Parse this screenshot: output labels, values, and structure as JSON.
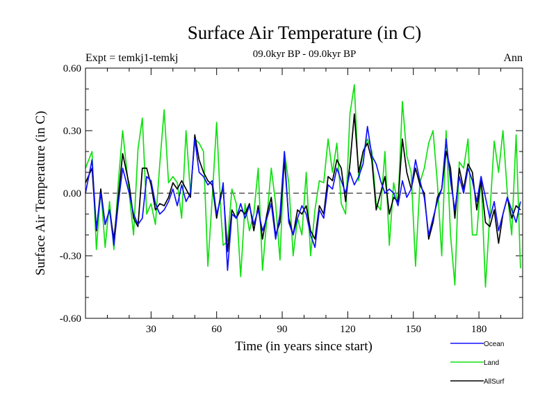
{
  "chart_data": {
    "type": "line",
    "title": "Surface Air Temperature (in C)",
    "subtitle": "09.0kyr BP - 09.0kyr BP",
    "left_label": "Expt = temkj1-temkj",
    "right_label": "Ann",
    "xlabel": "Time (in years since start)",
    "ylabel": "Surface Air Temperature (in C)",
    "xlim": [
      0,
      200
    ],
    "ylim": [
      -0.6,
      0.6
    ],
    "x_ticks": [
      30,
      60,
      90,
      120,
      150,
      180
    ],
    "x_tick_labels": [
      "30",
      "60",
      "90",
      "120",
      "150",
      "180"
    ],
    "y_ticks": [
      -0.6,
      -0.3,
      0.0,
      0.3,
      0.6
    ],
    "y_tick_labels": [
      "-0.60",
      "-0.30",
      "0.00",
      "0.30",
      "0.60"
    ],
    "zero_line": "dashed",
    "legend_position": "bottom-right",
    "x": [
      0,
      3,
      5,
      7,
      9,
      11,
      13,
      15,
      17,
      20,
      22,
      24,
      26,
      28,
      30,
      32,
      34,
      36,
      38,
      40,
      42,
      44,
      46,
      48,
      50,
      52,
      54,
      56,
      58,
      60,
      62,
      63,
      65,
      67,
      69,
      71,
      73,
      75,
      77,
      79,
      81,
      83,
      85,
      87,
      89,
      91,
      93,
      95,
      97,
      99,
      101,
      103,
      105,
      107,
      109,
      111,
      113,
      115,
      117,
      119,
      121,
      123,
      125,
      127,
      129,
      131,
      133,
      135,
      137,
      139,
      141,
      143,
      145,
      147,
      149,
      151,
      153,
      155,
      157,
      159,
      161,
      163,
      165,
      167,
      169,
      171,
      173,
      175,
      177,
      179,
      181,
      183,
      185,
      187,
      189,
      191,
      193,
      195,
      197,
      199
    ],
    "series": [
      {
        "name": "Ocean",
        "color": "#1010ff",
        "values": [
          0.0,
          0.16,
          -0.17,
          0.0,
          -0.15,
          -0.08,
          -0.25,
          -0.05,
          0.12,
          0.0,
          -0.1,
          -0.15,
          -0.12,
          0.08,
          0.06,
          -0.05,
          -0.1,
          -0.08,
          -0.04,
          0.02,
          -0.06,
          0.04,
          -0.04,
          0.0,
          0.26,
          0.1,
          0.08,
          0.04,
          0.06,
          -0.1,
          -0.02,
          0.05,
          -0.37,
          -0.1,
          -0.12,
          -0.05,
          -0.12,
          -0.06,
          -0.15,
          -0.08,
          -0.18,
          -0.12,
          -0.05,
          -0.22,
          -0.1,
          0.2,
          -0.14,
          -0.2,
          -0.12,
          -0.06,
          -0.1,
          -0.2,
          -0.26,
          -0.08,
          -0.12,
          0.04,
          0.02,
          0.12,
          0.06,
          0.0,
          0.1,
          0.04,
          0.08,
          0.14,
          0.32,
          0.18,
          0.14,
          0.06,
          0.0,
          0.02,
          0.0,
          -0.06,
          0.06,
          -0.02,
          0.02,
          0.16,
          0.06,
          -0.02,
          -0.2,
          -0.12,
          -0.04,
          0.02,
          0.26,
          0.06,
          -0.08,
          0.08,
          0.0,
          0.12,
          0.06,
          -0.04,
          0.08,
          -0.02,
          -0.12,
          -0.04,
          -0.18,
          -0.1,
          -0.02,
          -0.08,
          -0.14,
          -0.04
        ]
      },
      {
        "name": "Land",
        "color": "#10e010",
        "values": [
          0.12,
          0.2,
          -0.27,
          0.02,
          -0.26,
          -0.04,
          -0.27,
          0.05,
          0.3,
          0.0,
          -0.2,
          0.21,
          0.36,
          -0.1,
          -0.05,
          -0.15,
          0.14,
          0.4,
          0.05,
          0.08,
          0.05,
          -0.12,
          0.3,
          0.0,
          0.26,
          0.24,
          0.2,
          -0.35,
          -0.02,
          0.34,
          -0.1,
          -0.25,
          -0.23,
          0.02,
          -0.05,
          -0.4,
          -0.05,
          -0.18,
          -0.1,
          0.12,
          -0.37,
          -0.12,
          0.12,
          -0.05,
          -0.32,
          0.2,
          0.05,
          -0.3,
          -0.12,
          -0.2,
          0.1,
          -0.3,
          -0.08,
          0.06,
          0.05,
          0.26,
          0.1,
          0.24,
          -0.05,
          -0.1,
          0.38,
          0.52,
          0.06,
          0.2,
          0.26,
          0.2,
          -0.05,
          -0.08,
          0.2,
          -0.25,
          0.05,
          -0.05,
          0.44,
          0.18,
          0.1,
          -0.35,
          0.05,
          0.12,
          0.24,
          0.3,
          0.05,
          -0.3,
          0.3,
          -0.2,
          -0.44,
          0.15,
          0.12,
          0.26,
          -0.2,
          -0.2,
          0.08,
          -0.45,
          -0.1,
          0.25,
          0.1,
          0.3,
          0.0,
          -0.2,
          0.28,
          -0.36
        ]
      },
      {
        "name": "AllSurf",
        "color": "#000000",
        "values": [
          0.05,
          0.12,
          -0.18,
          0.02,
          -0.15,
          -0.08,
          -0.22,
          -0.02,
          0.19,
          0.04,
          -0.12,
          -0.16,
          0.12,
          0.12,
          0.04,
          -0.08,
          -0.05,
          -0.06,
          -0.02,
          0.05,
          0.02,
          0.06,
          0.02,
          -0.02,
          0.28,
          0.16,
          0.1,
          0.06,
          0.04,
          -0.12,
          0.0,
          0.02,
          -0.28,
          -0.08,
          -0.12,
          -0.08,
          -0.1,
          -0.05,
          -0.18,
          -0.06,
          -0.22,
          -0.1,
          -0.02,
          -0.2,
          -0.14,
          0.16,
          -0.12,
          -0.2,
          -0.08,
          -0.1,
          -0.06,
          -0.18,
          -0.22,
          -0.06,
          -0.1,
          0.08,
          0.06,
          0.16,
          0.12,
          -0.04,
          0.14,
          0.38,
          0.1,
          0.2,
          0.24,
          0.16,
          -0.08,
          0.0,
          0.08,
          -0.1,
          -0.02,
          -0.04,
          0.26,
          0.1,
          0.02,
          0.12,
          0.04,
          0.0,
          -0.22,
          -0.14,
          -0.02,
          0.02,
          0.2,
          0.12,
          -0.12,
          0.12,
          0.02,
          0.14,
          0.1,
          -0.08,
          0.06,
          -0.14,
          -0.16,
          -0.08,
          -0.24,
          -0.1,
          -0.02,
          -0.12,
          -0.06,
          -0.08
        ]
      }
    ]
  }
}
